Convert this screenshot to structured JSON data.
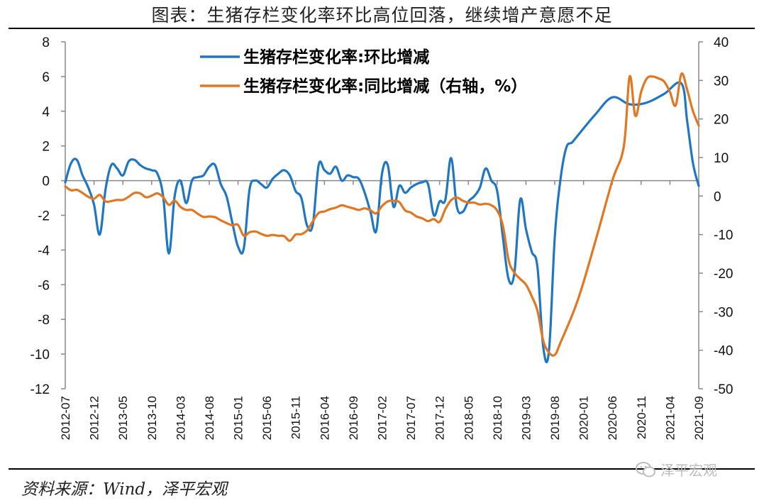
{
  "title": "图表：生猪存栏变化率环比高位回落，继续增产意愿不足",
  "source": "资料来源：Wind，泽平宏观",
  "watermark": "泽平宏观",
  "chart_data": {
    "type": "line",
    "x": [
      "2012-07",
      "2012-12",
      "2013-05",
      "2013-10",
      "2014-03",
      "2014-08",
      "2015-01",
      "2015-06",
      "2015-11",
      "2016-04",
      "2016-09",
      "2017-02",
      "2017-07",
      "2017-12",
      "2018-05",
      "2018-10",
      "2019-03",
      "2019-08",
      "2020-01",
      "2020-06",
      "2020-11",
      "2021-04",
      "2021-09"
    ],
    "y_left": {
      "min": -12,
      "max": 8,
      "step": 2,
      "ticks": [
        "8",
        "6",
        "4",
        "2",
        "0",
        "-2",
        "-4",
        "-6",
        "-8",
        "-10",
        "-12"
      ]
    },
    "y_right": {
      "min": -50,
      "max": 40,
      "step": 10,
      "ticks": [
        "40",
        "30",
        "20",
        "10",
        "0",
        "-10",
        "-20",
        "-30",
        "-40",
        "-50"
      ]
    },
    "series": [
      {
        "name": "生猪存栏变化率:环比增减",
        "axis": "left",
        "color": "#1f77c4",
        "points": [
          [
            "2012-07",
            -0.1
          ],
          [
            "2012-08",
            1.0
          ],
          [
            "2012-09",
            1.2
          ],
          [
            "2012-10",
            0.3
          ],
          [
            "2012-11",
            -0.4
          ],
          [
            "2012-12",
            -1.4
          ],
          [
            "2013-01",
            -3.1
          ],
          [
            "2013-02",
            -0.5
          ],
          [
            "2013-03",
            0.9
          ],
          [
            "2013-04",
            0.7
          ],
          [
            "2013-05",
            0.3
          ],
          [
            "2013-06",
            1.1
          ],
          [
            "2013-07",
            1.2
          ],
          [
            "2013-08",
            0.9
          ],
          [
            "2013-09",
            0.7
          ],
          [
            "2013-10",
            0.6
          ],
          [
            "2013-11",
            0.4
          ],
          [
            "2013-12",
            -0.9
          ],
          [
            "2014-01",
            -4.2
          ],
          [
            "2014-02",
            -0.9
          ],
          [
            "2014-03",
            0.0
          ],
          [
            "2014-04",
            -1.3
          ],
          [
            "2014-05",
            0.0
          ],
          [
            "2014-06",
            0.2
          ],
          [
            "2014-07",
            0.3
          ],
          [
            "2014-08",
            0.8
          ],
          [
            "2014-09",
            0.9
          ],
          [
            "2014-10",
            -0.2
          ],
          [
            "2014-11",
            -0.9
          ],
          [
            "2014-12",
            -2.4
          ],
          [
            "2015-01",
            -3.8
          ],
          [
            "2015-02",
            -3.9
          ],
          [
            "2015-03",
            -0.5
          ],
          [
            "2015-04",
            0.0
          ],
          [
            "2015-05",
            -0.2
          ],
          [
            "2015-06",
            -0.4
          ],
          [
            "2015-07",
            0.1
          ],
          [
            "2015-08",
            0.4
          ],
          [
            "2015-09",
            0.6
          ],
          [
            "2015-10",
            0.3
          ],
          [
            "2015-11",
            -0.6
          ],
          [
            "2015-12",
            -1.0
          ],
          [
            "2016-01",
            -2.6
          ],
          [
            "2016-02",
            -2.5
          ],
          [
            "2016-03",
            0.9
          ],
          [
            "2016-04",
            0.6
          ],
          [
            "2016-05",
            0.4
          ],
          [
            "2016-06",
            0.8
          ],
          [
            "2016-07",
            0.0
          ],
          [
            "2016-08",
            0.3
          ],
          [
            "2016-09",
            0.2
          ],
          [
            "2016-10",
            0.1
          ],
          [
            "2016-11",
            -0.7
          ],
          [
            "2016-12",
            -1.8
          ],
          [
            "2017-01",
            -2.9
          ],
          [
            "2017-02",
            0.4
          ],
          [
            "2017-03",
            0.9
          ],
          [
            "2017-04",
            -1.5
          ],
          [
            "2017-05",
            -0.3
          ],
          [
            "2017-06",
            -0.7
          ],
          [
            "2017-07",
            -0.4
          ],
          [
            "2017-08",
            -0.2
          ],
          [
            "2017-09",
            -0.1
          ],
          [
            "2017-10",
            -0.2
          ],
          [
            "2017-11",
            -2.0
          ],
          [
            "2017-12",
            -1.2
          ],
          [
            "2018-01",
            -1.1
          ],
          [
            "2018-02",
            1.3
          ],
          [
            "2018-03",
            -1.5
          ],
          [
            "2018-04",
            -1.8
          ],
          [
            "2018-05",
            -1.2
          ],
          [
            "2018-06",
            -0.9
          ],
          [
            "2018-07",
            -0.4
          ],
          [
            "2018-08",
            0.7
          ],
          [
            "2018-09",
            0.0
          ],
          [
            "2018-10",
            -0.6
          ],
          [
            "2018-11",
            -3.3
          ],
          [
            "2018-12",
            -5.7
          ],
          [
            "2019-01",
            -5.3
          ],
          [
            "2019-02",
            -1.1
          ],
          [
            "2019-03",
            -2.8
          ],
          [
            "2019-04",
            -4.1
          ],
          [
            "2019-05",
            -5.0
          ],
          [
            "2019-06",
            -9.6
          ],
          [
            "2019-07",
            -9.8
          ],
          [
            "2019-08",
            -3.3
          ],
          [
            "2019-09",
            0.1
          ],
          [
            "2019-10",
            1.9
          ],
          [
            "2019-11",
            2.2
          ],
          [
            "2019-12",
            2.6
          ],
          [
            "2020-03",
            3.8
          ],
          [
            "2020-06",
            4.8
          ],
          [
            "2020-09",
            4.4
          ],
          [
            "2020-12",
            4.5
          ],
          [
            "2021-03",
            5.0
          ],
          [
            "2021-06",
            5.6
          ],
          [
            "2021-07",
            3.4
          ],
          [
            "2021-08",
            1.0
          ],
          [
            "2021-09",
            -0.3
          ]
        ]
      },
      {
        "name": "生猪存栏变化率:同比增减（右轴，%）",
        "axis": "right",
        "color": "#e27722",
        "points": [
          [
            "2012-07",
            2.5
          ],
          [
            "2012-08",
            1.5
          ],
          [
            "2012-09",
            1.6
          ],
          [
            "2012-10",
            0.8
          ],
          [
            "2012-11",
            -0.2
          ],
          [
            "2012-12",
            -0.7
          ],
          [
            "2013-01",
            0.3
          ],
          [
            "2013-02",
            -1.4
          ],
          [
            "2013-03",
            -1.3
          ],
          [
            "2013-04",
            -1.0
          ],
          [
            "2013-05",
            -1.0
          ],
          [
            "2013-06",
            -0.2
          ],
          [
            "2013-07",
            0.8
          ],
          [
            "2013-08",
            0.7
          ],
          [
            "2013-09",
            -0.3
          ],
          [
            "2013-10",
            0.1
          ],
          [
            "2013-11",
            0.7
          ],
          [
            "2013-12",
            -0.3
          ],
          [
            "2014-01",
            -2.3
          ],
          [
            "2014-02",
            -1.2
          ],
          [
            "2014-03",
            -2.8
          ],
          [
            "2014-04",
            -3.6
          ],
          [
            "2014-05",
            -3.6
          ],
          [
            "2014-06",
            -4.6
          ],
          [
            "2014-07",
            -5.4
          ],
          [
            "2014-08",
            -5.3
          ],
          [
            "2014-09",
            -5.5
          ],
          [
            "2014-10",
            -6.3
          ],
          [
            "2014-11",
            -7.0
          ],
          [
            "2014-12",
            -7.6
          ],
          [
            "2015-01",
            -7.5
          ],
          [
            "2015-02",
            -10.3
          ],
          [
            "2015-03",
            -9.4
          ],
          [
            "2015-04",
            -9.2
          ],
          [
            "2015-05",
            -9.8
          ],
          [
            "2015-06",
            -10.3
          ],
          [
            "2015-07",
            -10.1
          ],
          [
            "2015-08",
            -10.3
          ],
          [
            "2015-09",
            -10.4
          ],
          [
            "2015-10",
            -11.6
          ],
          [
            "2015-11",
            -10.0
          ],
          [
            "2015-12",
            -9.9
          ],
          [
            "2016-01",
            -8.9
          ],
          [
            "2016-02",
            -6.5
          ],
          [
            "2016-03",
            -4.4
          ],
          [
            "2016-04",
            -4.0
          ],
          [
            "2016-05",
            -3.4
          ],
          [
            "2016-06",
            -3.0
          ],
          [
            "2016-07",
            -2.4
          ],
          [
            "2016-08",
            -2.8
          ],
          [
            "2016-09",
            -3.2
          ],
          [
            "2016-10",
            -3.6
          ],
          [
            "2016-11",
            -3.2
          ],
          [
            "2016-12",
            -3.7
          ],
          [
            "2017-01",
            -4.5
          ],
          [
            "2017-02",
            -2.6
          ],
          [
            "2017-03",
            -1.4
          ],
          [
            "2017-04",
            -1.2
          ],
          [
            "2017-05",
            -1.6
          ],
          [
            "2017-06",
            -3.7
          ],
          [
            "2017-07",
            -4.3
          ],
          [
            "2017-08",
            -5.3
          ],
          [
            "2017-09",
            -5.8
          ],
          [
            "2017-10",
            -6.5
          ],
          [
            "2017-11",
            -6.0
          ],
          [
            "2017-12",
            -6.7
          ],
          [
            "2018-01",
            -3.4
          ],
          [
            "2018-02",
            -1.1
          ],
          [
            "2018-03",
            -0.4
          ],
          [
            "2018-04",
            -1.2
          ],
          [
            "2018-05",
            -1.7
          ],
          [
            "2018-06",
            -1.7
          ],
          [
            "2018-07",
            -2.2
          ],
          [
            "2018-08",
            -2.0
          ],
          [
            "2018-09",
            -2.4
          ],
          [
            "2018-10",
            -3.8
          ],
          [
            "2018-11",
            -7.8
          ],
          [
            "2018-12",
            -16.7
          ],
          [
            "2019-01",
            -19.9
          ],
          [
            "2019-02",
            -21.5
          ],
          [
            "2019-03",
            -23.0
          ],
          [
            "2019-04",
            -26.0
          ],
          [
            "2019-05",
            -29.8
          ],
          [
            "2019-06",
            -37.5
          ],
          [
            "2019-07",
            -40.6
          ],
          [
            "2019-08",
            -41.2
          ],
          [
            "2019-09",
            -38.0
          ],
          [
            "2019-12",
            -27.0
          ],
          [
            "2020-03",
            -12.0
          ],
          [
            "2020-06",
            4.0
          ],
          [
            "2020-08",
            13.0
          ],
          [
            "2020-09",
            31.0
          ],
          [
            "2020-10",
            20.8
          ],
          [
            "2020-11",
            27.0
          ],
          [
            "2020-12",
            30.5
          ],
          [
            "2021-01",
            31.0
          ],
          [
            "2021-02",
            30.5
          ],
          [
            "2021-03",
            29.7
          ],
          [
            "2021-04",
            27.0
          ],
          [
            "2021-05",
            23.5
          ],
          [
            "2021-06",
            31.7
          ],
          [
            "2021-07",
            27.5
          ],
          [
            "2021-08",
            22.0
          ],
          [
            "2021-09",
            18.3
          ]
        ]
      }
    ],
    "grid": false,
    "legend": "top-left"
  }
}
